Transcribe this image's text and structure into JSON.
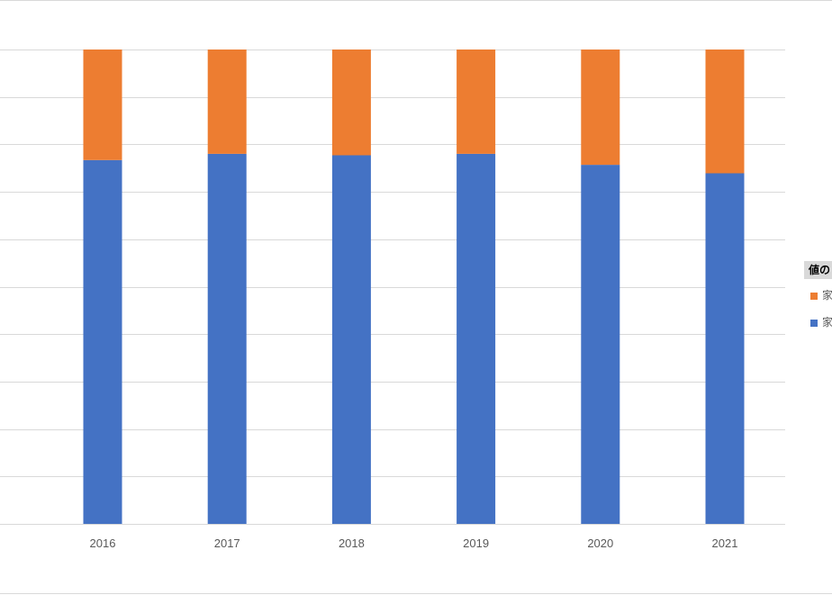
{
  "chart_data": {
    "type": "bar",
    "stacked": "100%",
    "categories": [
      "2016",
      "2017",
      "2018",
      "2019",
      "2020",
      "2021"
    ],
    "series": [
      {
        "name": "家",
        "color": "#4472C4",
        "values": [
          76.7,
          78.0,
          77.7,
          78.0,
          75.7,
          73.9
        ]
      },
      {
        "name": "家",
        "color": "#ED7D31",
        "values": [
          23.3,
          22.0,
          22.3,
          22.0,
          24.3,
          26.1
        ]
      }
    ],
    "ylim": [
      0,
      100
    ],
    "grid": true,
    "legend": {
      "title": "値の",
      "position": "right",
      "order": [
        1,
        0
      ]
    },
    "title": "",
    "xlabel": "",
    "ylabel": ""
  }
}
